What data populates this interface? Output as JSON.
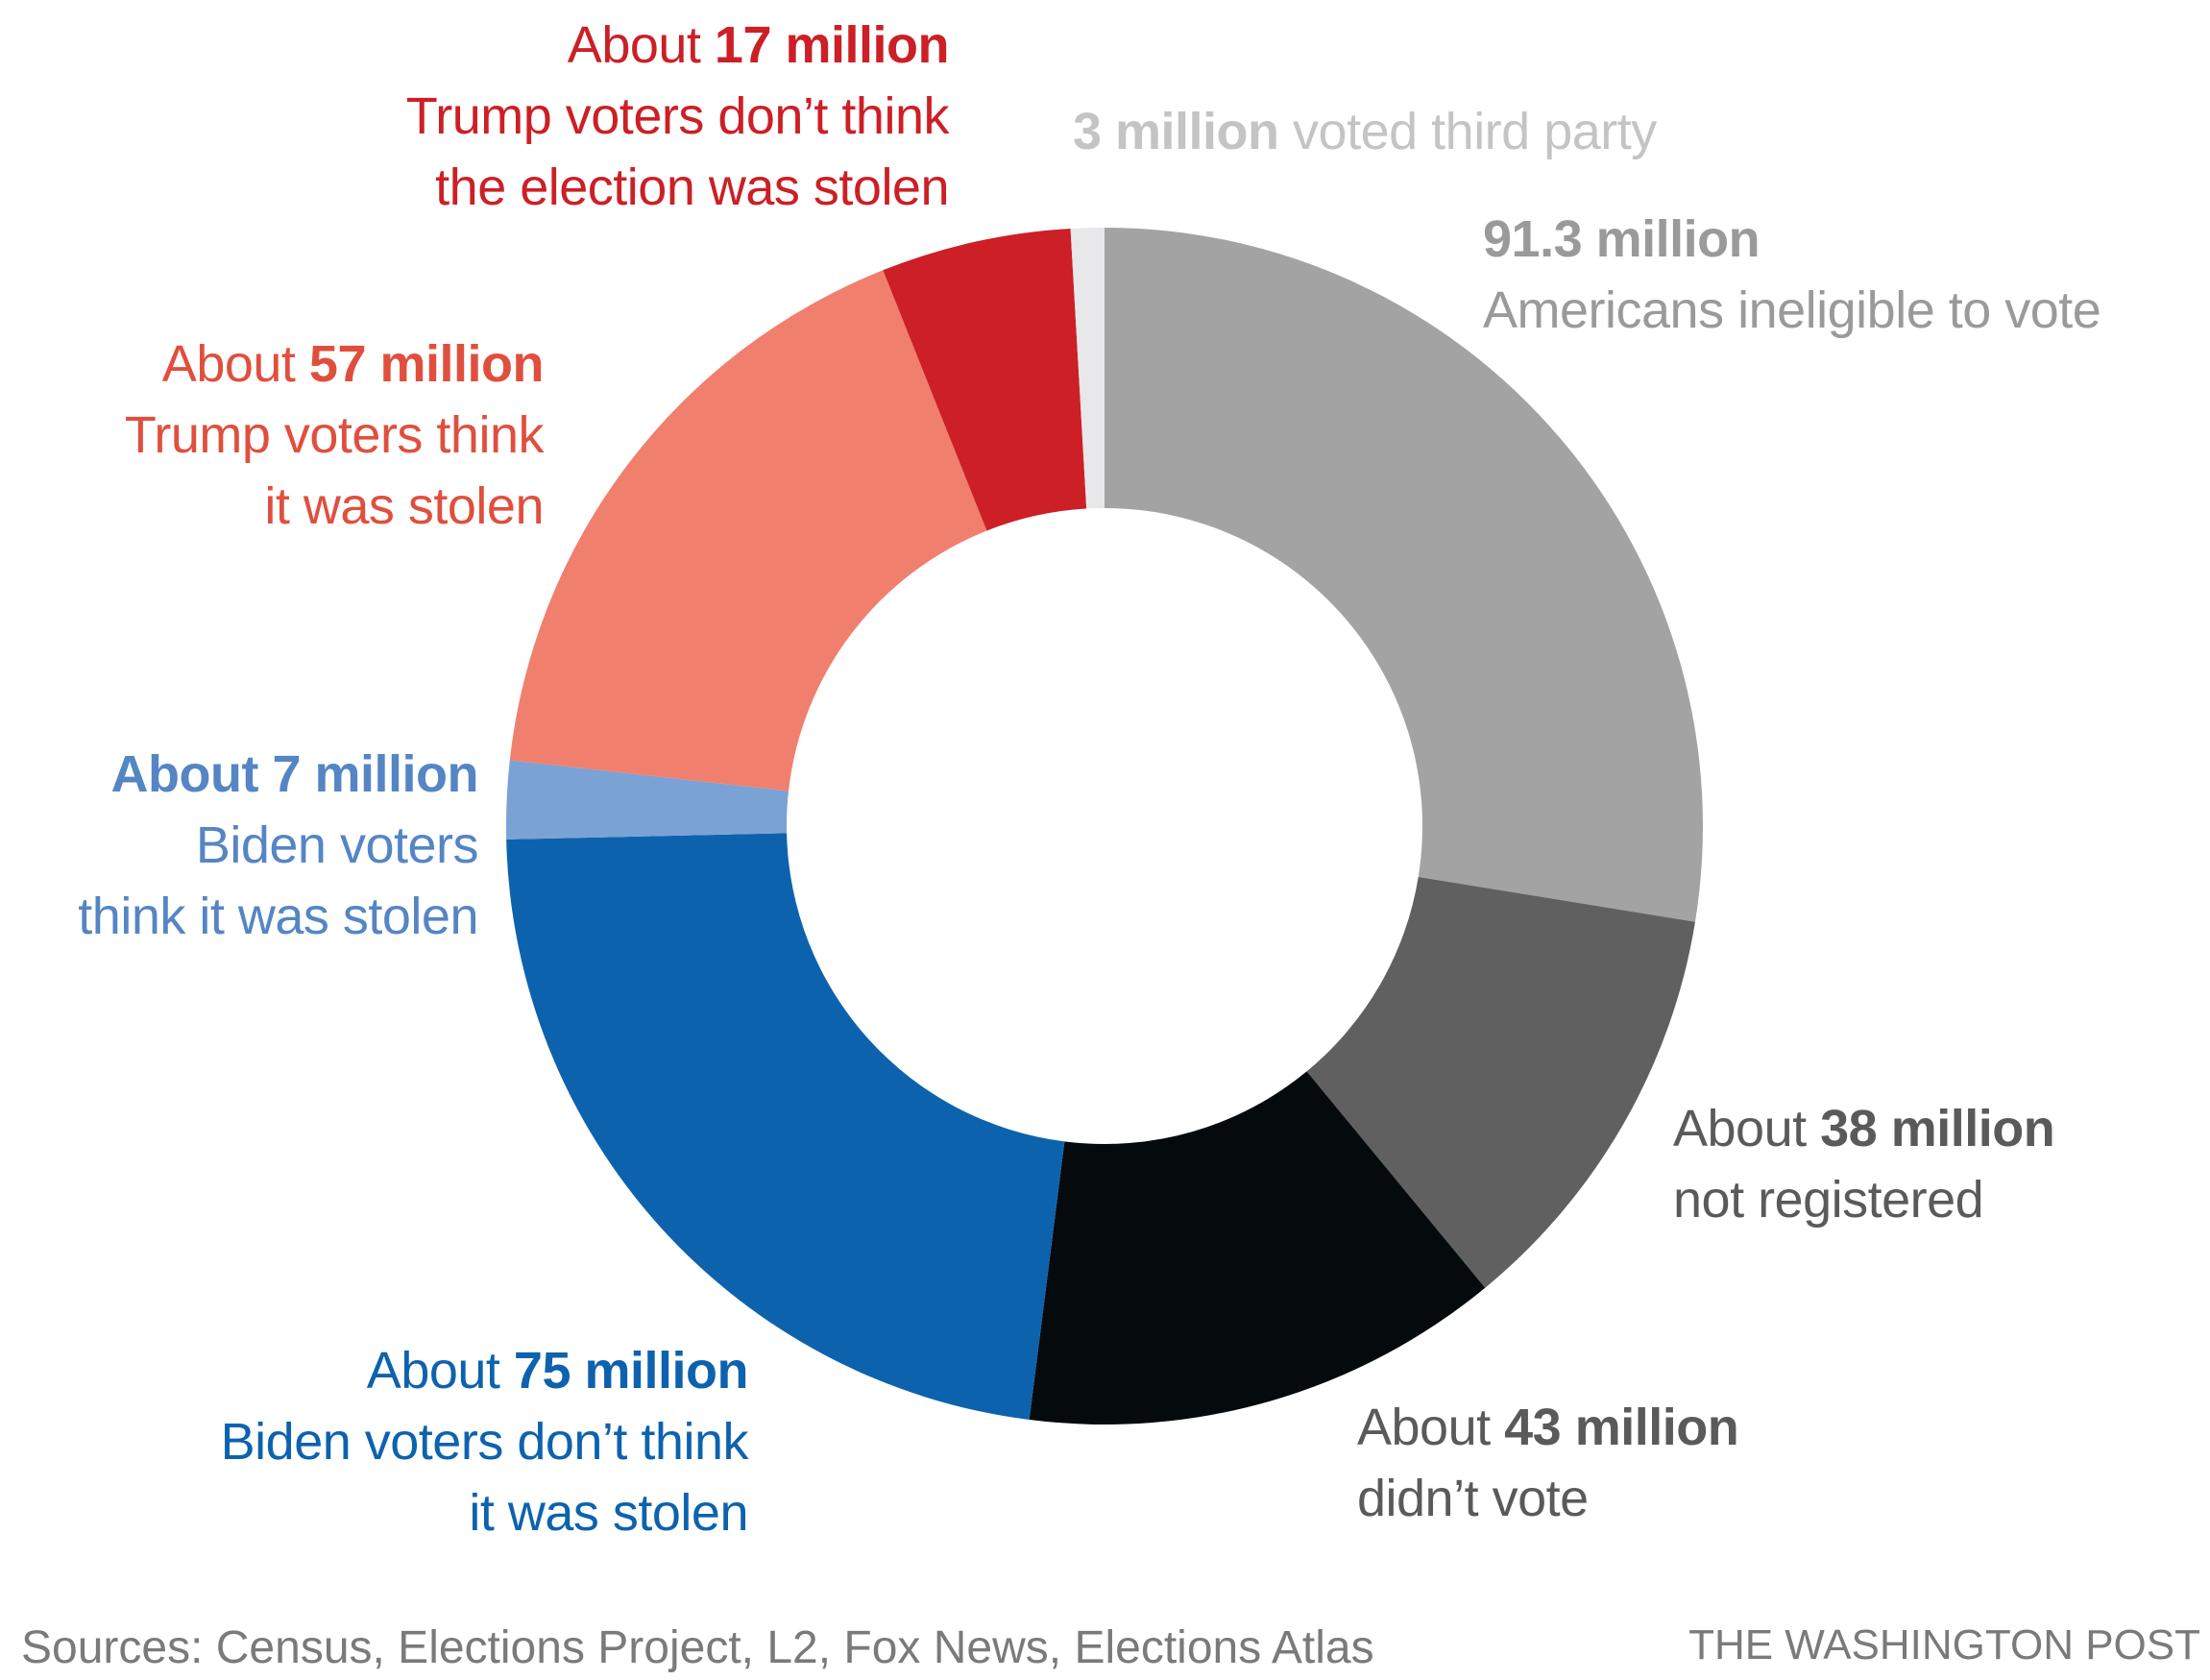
{
  "chart_data": {
    "type": "pie",
    "donut": true,
    "unit": "million",
    "start": "top, clockwise",
    "slices": [
      {
        "key": "ineligible",
        "value": 91.3,
        "color": "#a3a3a3",
        "label_color": "#9a9a9a",
        "pre": "",
        "bold": "91.3 million",
        "post": "",
        "lines": [
          "Americans ineligible to vote"
        ]
      },
      {
        "key": "not-registered",
        "value": 38,
        "color": "#606060",
        "label_color": "#5a5a5a",
        "pre": "About ",
        "bold": "38 million",
        "post": "",
        "lines": [
          "not registered"
        ]
      },
      {
        "key": "didnt-vote",
        "value": 43,
        "color": "#050a0c",
        "label_color": "#5a5a5a",
        "pre": "About ",
        "bold": "43 million",
        "post": "",
        "lines": [
          "didn’t vote"
        ]
      },
      {
        "key": "biden-not-stolen",
        "value": 75,
        "color": "#0d62ae",
        "label_color": "#0d62ae",
        "pre": "About ",
        "bold": "75 million",
        "post": "",
        "lines": [
          "Biden voters don’t think",
          "it was stolen"
        ]
      },
      {
        "key": "biden-stolen",
        "value": 7,
        "color": "#7ba2d4",
        "label_color": "#5585c4",
        "pre": "",
        "bold": "About 7 million",
        "post": "",
        "lines": [
          "Biden voters",
          "think it was stolen"
        ]
      },
      {
        "key": "trump-stolen",
        "value": 57,
        "color": "#f07f6e",
        "label_color": "#e04f3e",
        "pre": "About ",
        "bold": "57 million",
        "post": "",
        "lines": [
          "Trump voters think",
          "it was stolen"
        ]
      },
      {
        "key": "trump-not-stolen",
        "value": 17,
        "color": "#cc1f26",
        "label_color": "#cc1f26",
        "pre": "About ",
        "bold": "17 million",
        "post": "",
        "lines": [
          "Trump voters don’t think",
          "the election was stolen"
        ]
      },
      {
        "key": "third-party",
        "value": 3,
        "color": "#e8e8ea",
        "label_color": "#c4c4c4",
        "pre": "",
        "bold": "3 million",
        "post": " voted third party",
        "lines": []
      }
    ]
  },
  "footer": {
    "sources": "Sources: Census, Elections Project, L2, Fox News, Elections Atlas",
    "credit": "THE WASHINGTON POST"
  }
}
